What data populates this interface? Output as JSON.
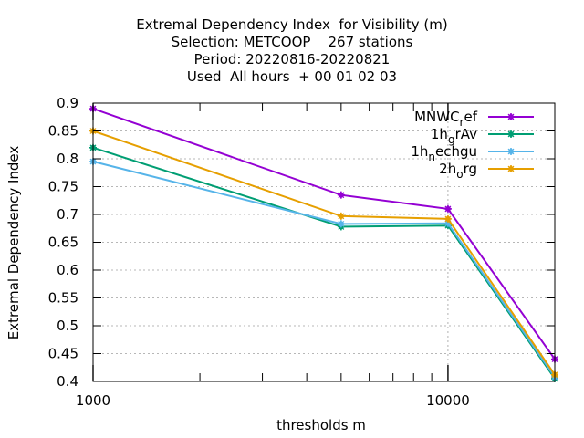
{
  "title_lines": [
    "Extremal Dependency Index  for Visibility (m)",
    "Selection: METCOOP    267 stations",
    "Period: 20220816-20220821",
    "Used  All hours  + 00 01 02 03"
  ],
  "chart_data": {
    "type": "line",
    "xlabel": "thresholds m",
    "ylabel": "Extremal Dependency Index",
    "x_scale": "log",
    "xlim": [
      1000,
      20000
    ],
    "ylim": [
      0.4,
      0.9
    ],
    "x_ticks": [
      1000,
      10000
    ],
    "x_tick_labels": [
      "1000",
      "10000"
    ],
    "y_ticks": [
      0.4,
      0.45,
      0.5,
      0.55,
      0.6,
      0.65,
      0.7,
      0.75,
      0.8,
      0.85,
      0.9
    ],
    "y_tick_labels": [
      "0.4",
      "0.45",
      "0.5",
      "0.55",
      "0.6",
      "0.65",
      "0.7",
      "0.75",
      "0.8",
      "0.85",
      "0.9"
    ],
    "grid": true,
    "legend_position": "top-right",
    "x": [
      1000,
      5000,
      10000,
      20000
    ],
    "series": [
      {
        "name": "MNWC_ref",
        "label_base": "MNWC",
        "label_sub": "r",
        "label_rest": "ef",
        "color": "#9400d3",
        "values": [
          0.89,
          0.735,
          0.71,
          0.44
        ]
      },
      {
        "name": "1h_grAv",
        "label_base": "1h",
        "label_sub": "g",
        "label_rest": "rAv",
        "color": "#009e73",
        "values": [
          0.82,
          0.678,
          0.68,
          0.405
        ]
      },
      {
        "name": "1h_nechgu",
        "label_base": "1h",
        "label_sub": "n",
        "label_rest": "echgu",
        "color": "#56b4e9",
        "values": [
          0.795,
          0.683,
          0.684,
          0.408
        ]
      },
      {
        "name": "2h_org",
        "label_base": "2h",
        "label_sub": "o",
        "label_rest": "rg",
        "color": "#e69f00",
        "values": [
          0.85,
          0.697,
          0.692,
          0.412
        ]
      }
    ]
  }
}
